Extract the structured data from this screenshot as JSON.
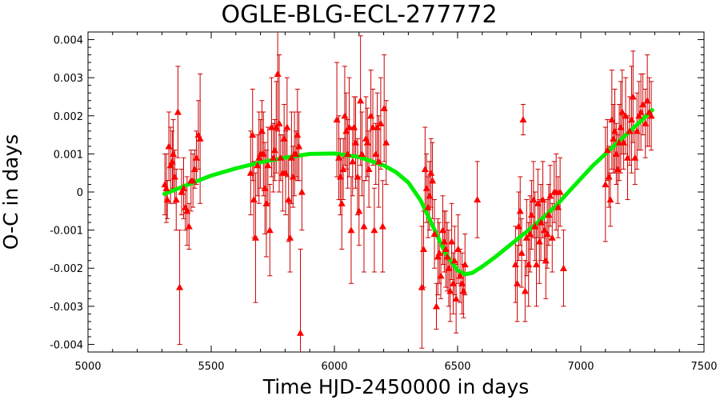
{
  "chart_data": {
    "type": "scatter",
    "title": "OGLE-BLG-ECL-277772",
    "xlabel": "Time HJD-2450000 in days",
    "ylabel": "O-C in days",
    "xlim": [
      5000,
      7500
    ],
    "ylim": [
      -0.0042,
      0.0042
    ],
    "x_ticks": [
      "5000",
      "5500",
      "6000",
      "6500",
      "7000",
      "7500"
    ],
    "y_ticks": [
      "-0.004",
      "-0.003",
      "-0.002",
      "-0.001",
      "0",
      "0.001",
      "0.002",
      "0.003",
      "0.004"
    ],
    "grid": false,
    "colors": {
      "points": "#ff0000",
      "errorbars": "#cc0000",
      "fit": "#00ee00"
    },
    "series": [
      {
        "type": "scatter_errorbars",
        "points": [
          {
            "x": 5312,
            "y": 0.0002,
            "err": 0.0008
          },
          {
            "x": 5318,
            "y": 0.0001,
            "err": 0.0009
          },
          {
            "x": 5322,
            "y": -0.0002,
            "err": 0.0005
          },
          {
            "x": 5328,
            "y": 0.0012,
            "err": 0.0009
          },
          {
            "x": 5335,
            "y": 0.0007,
            "err": 0.001
          },
          {
            "x": 5342,
            "y": 0.0008,
            "err": 0.0008
          },
          {
            "x": 5346,
            "y": 0.001,
            "err": 0.0009
          },
          {
            "x": 5352,
            "y": 0.0004,
            "err": 0.0007
          },
          {
            "x": 5358,
            "y": -0.0002,
            "err": 0.0008
          },
          {
            "x": 5365,
            "y": 0.0021,
            "err": 0.0012
          },
          {
            "x": 5372,
            "y": -0.0025,
            "err": 0.0015
          },
          {
            "x": 5380,
            "y": 0.0,
            "err": 0.0006
          },
          {
            "x": 5388,
            "y": 0.0001,
            "err": 0.0008
          },
          {
            "x": 5395,
            "y": -0.0004,
            "err": 0.0006
          },
          {
            "x": 5402,
            "y": -0.0005,
            "err": 0.0009
          },
          {
            "x": 5410,
            "y": -0.0009,
            "err": 0.0006
          },
          {
            "x": 5418,
            "y": 0.0003,
            "err": 0.0008
          },
          {
            "x": 5426,
            "y": 0.0003,
            "err": 0.0007
          },
          {
            "x": 5433,
            "y": 0.0006,
            "err": 0.0005
          },
          {
            "x": 5440,
            "y": 0.0009,
            "err": 0.0007
          },
          {
            "x": 5448,
            "y": 0.0015,
            "err": 0.0009
          },
          {
            "x": 5455,
            "y": 0.0014,
            "err": 0.0017
          },
          {
            "x": 5660,
            "y": 0.0005,
            "err": 0.0011
          },
          {
            "x": 5668,
            "y": 0.0015,
            "err": 0.0012
          },
          {
            "x": 5673,
            "y": -0.0002,
            "err": 0.001
          },
          {
            "x": 5680,
            "y": -0.0012,
            "err": 0.0017
          },
          {
            "x": 5688,
            "y": 0.0007,
            "err": 0.0008
          },
          {
            "x": 5694,
            "y": 0.0009,
            "err": 0.0012
          },
          {
            "x": 5700,
            "y": 0.001,
            "err": 0.0009
          },
          {
            "x": 5706,
            "y": 0.0016,
            "err": 0.0008
          },
          {
            "x": 5712,
            "y": 0.001,
            "err": 0.0011
          },
          {
            "x": 5718,
            "y": 0.0001,
            "err": 0.0012
          },
          {
            "x": 5724,
            "y": -0.0003,
            "err": 0.0014
          },
          {
            "x": 5730,
            "y": 0.0007,
            "err": 0.001
          },
          {
            "x": 5738,
            "y": -0.001,
            "err": 0.0012
          },
          {
            "x": 5745,
            "y": 0.0017,
            "err": 0.0013
          },
          {
            "x": 5752,
            "y": 0.0009,
            "err": 0.0009
          },
          {
            "x": 5758,
            "y": 0.0011,
            "err": 0.0008
          },
          {
            "x": 5764,
            "y": 0.0017,
            "err": 0.0012
          },
          {
            "x": 5770,
            "y": 0.0031,
            "err": 0.0015
          },
          {
            "x": 5776,
            "y": 0.0018,
            "err": 0.0018
          },
          {
            "x": 5782,
            "y": 0.0009,
            "err": 0.0006
          },
          {
            "x": 5790,
            "y": 0.0005,
            "err": 0.001
          },
          {
            "x": 5796,
            "y": 0.0014,
            "err": 0.0009
          },
          {
            "x": 5802,
            "y": 0.0005,
            "err": 0.0011
          },
          {
            "x": 5808,
            "y": 0.0017,
            "err": 0.0013
          },
          {
            "x": 5814,
            "y": -0.0002,
            "err": 0.0011
          },
          {
            "x": 5820,
            "y": -0.0012,
            "err": 0.0009
          },
          {
            "x": 5826,
            "y": 0.0009,
            "err": 0.0012
          },
          {
            "x": 5832,
            "y": 0.0004,
            "err": 0.0008
          },
          {
            "x": 5838,
            "y": 0.001,
            "err": 0.0011
          },
          {
            "x": 5844,
            "y": 0.001,
            "err": 0.0006
          },
          {
            "x": 5850,
            "y": 0.0015,
            "err": 0.0012
          },
          {
            "x": 5856,
            "y": 0.0012,
            "err": 0.0009
          },
          {
            "x": 5862,
            "y": -0.0037,
            "err": 0.0022
          },
          {
            "x": 5868,
            "y": 0.0,
            "err": 0.001
          },
          {
            "x": 6010,
            "y": 0.0019,
            "err": 0.0015
          },
          {
            "x": 6018,
            "y": 0.0009,
            "err": 0.0011
          },
          {
            "x": 6024,
            "y": 0.0004,
            "err": 0.001
          },
          {
            "x": 6030,
            "y": -0.0003,
            "err": 0.0012
          },
          {
            "x": 6036,
            "y": 0.0006,
            "err": 0.0008
          },
          {
            "x": 6042,
            "y": 0.002,
            "err": 0.0013
          },
          {
            "x": 6048,
            "y": 0.0016,
            "err": 0.001
          },
          {
            "x": 6054,
            "y": 0.001,
            "err": 0.0009
          },
          {
            "x": 6060,
            "y": 0.0017,
            "err": 0.0013
          },
          {
            "x": 6068,
            "y": -0.001,
            "err": 0.0014
          },
          {
            "x": 6074,
            "y": 0.0008,
            "err": 0.0009
          },
          {
            "x": 6080,
            "y": 0.0017,
            "err": 0.0008
          },
          {
            "x": 6086,
            "y": 0.0013,
            "err": 0.0012
          },
          {
            "x": 6094,
            "y": 0.0004,
            "err": 0.001
          },
          {
            "x": 6100,
            "y": -0.0005,
            "err": 0.0009
          },
          {
            "x": 6106,
            "y": 0.0024,
            "err": 0.0017
          },
          {
            "x": 6112,
            "y": 0.001,
            "err": 0.0011
          },
          {
            "x": 6120,
            "y": -0.0009,
            "err": 0.0012
          },
          {
            "x": 6128,
            "y": 0.0014,
            "err": 0.0011
          },
          {
            "x": 6134,
            "y": 0.0013,
            "err": 0.0009
          },
          {
            "x": 6140,
            "y": 0.0006,
            "err": 0.001
          },
          {
            "x": 6148,
            "y": 0.002,
            "err": 0.0012
          },
          {
            "x": 6156,
            "y": 0.0017,
            "err": 0.001
          },
          {
            "x": 6162,
            "y": -0.001,
            "err": 0.0011
          },
          {
            "x": 6168,
            "y": 0.001,
            "err": 0.0008
          },
          {
            "x": 6174,
            "y": 0.0017,
            "err": 0.0009
          },
          {
            "x": 6180,
            "y": 0.0008,
            "err": 0.0012
          },
          {
            "x": 6188,
            "y": 0.0018,
            "err": 0.0012
          },
          {
            "x": 6196,
            "y": -0.0009,
            "err": 0.0012
          },
          {
            "x": 6202,
            "y": 0.0022,
            "err": 0.0014
          },
          {
            "x": 6210,
            "y": 0.0013,
            "err": 0.0011
          },
          {
            "x": 6355,
            "y": -0.0025,
            "err": 0.0016
          },
          {
            "x": 6362,
            "y": -0.0015,
            "err": 0.001
          },
          {
            "x": 6368,
            "y": 0.0006,
            "err": 0.0011
          },
          {
            "x": 6374,
            "y": 0.0001,
            "err": 0.0009
          },
          {
            "x": 6380,
            "y": -0.0004,
            "err": 0.0008
          },
          {
            "x": 6386,
            "y": -0.0001,
            "err": 0.0009
          },
          {
            "x": 6392,
            "y": 0.0005,
            "err": 0.0009
          },
          {
            "x": 6398,
            "y": 0.0003,
            "err": 0.001
          },
          {
            "x": 6406,
            "y": -0.0011,
            "err": 0.0009
          },
          {
            "x": 6414,
            "y": -0.003,
            "err": 0.0006
          },
          {
            "x": 6420,
            "y": -0.0017,
            "err": 0.001
          },
          {
            "x": 6426,
            "y": -0.0016,
            "err": 0.0008
          },
          {
            "x": 6432,
            "y": -0.0022,
            "err": 0.0006
          },
          {
            "x": 6440,
            "y": -0.001,
            "err": 0.0009
          },
          {
            "x": 6446,
            "y": -0.0013,
            "err": 0.0008
          },
          {
            "x": 6452,
            "y": -0.0015,
            "err": 0.001
          },
          {
            "x": 6458,
            "y": -0.0017,
            "err": 0.0009
          },
          {
            "x": 6464,
            "y": -0.002,
            "err": 0.001
          },
          {
            "x": 6470,
            "y": -0.0026,
            "err": 0.0008
          },
          {
            "x": 6476,
            "y": -0.0013,
            "err": 0.001
          },
          {
            "x": 6482,
            "y": -0.0024,
            "err": 0.0008
          },
          {
            "x": 6488,
            "y": -0.0018,
            "err": 0.0009
          },
          {
            "x": 6494,
            "y": -0.0028,
            "err": 0.0009
          },
          {
            "x": 6502,
            "y": -0.0015,
            "err": 0.0009
          },
          {
            "x": 6510,
            "y": -0.0022,
            "err": 0.0007
          },
          {
            "x": 6518,
            "y": -0.0024,
            "err": 0.0008
          },
          {
            "x": 6524,
            "y": -0.0026,
            "err": 0.0007
          },
          {
            "x": 6530,
            "y": -0.0019,
            "err": 0.0008
          },
          {
            "x": 6580,
            "y": -0.0002,
            "err": 0.001
          },
          {
            "x": 6735,
            "y": -0.0019,
            "err": 0.001
          },
          {
            "x": 6742,
            "y": -0.0024,
            "err": 0.001
          },
          {
            "x": 6748,
            "y": -0.0009,
            "err": 0.0009
          },
          {
            "x": 6754,
            "y": -0.0005,
            "err": 0.0009
          },
          {
            "x": 6760,
            "y": -0.0016,
            "err": 0.0009
          },
          {
            "x": 6766,
            "y": 0.0019,
            "err": 0.0004
          },
          {
            "x": 6774,
            "y": -0.0026,
            "err": 0.0008
          },
          {
            "x": 6780,
            "y": -0.0012,
            "err": 0.001
          },
          {
            "x": 6788,
            "y": -0.0019,
            "err": 0.0011
          },
          {
            "x": 6794,
            "y": -0.0011,
            "err": 0.001
          },
          {
            "x": 6800,
            "y": -0.0006,
            "err": 0.0009
          },
          {
            "x": 6808,
            "y": -0.0002,
            "err": 0.001
          },
          {
            "x": 6814,
            "y": -0.0009,
            "err": 0.0009
          },
          {
            "x": 6820,
            "y": -0.0019,
            "err": 0.0011
          },
          {
            "x": 6826,
            "y": -0.0003,
            "err": 0.0009
          },
          {
            "x": 6832,
            "y": -0.0013,
            "err": 0.0011
          },
          {
            "x": 6838,
            "y": -0.0008,
            "err": 0.001
          },
          {
            "x": 6846,
            "y": -0.0002,
            "err": 0.001
          },
          {
            "x": 6852,
            "y": -0.001,
            "err": 0.0008
          },
          {
            "x": 6858,
            "y": -0.0018,
            "err": 0.001
          },
          {
            "x": 6864,
            "y": -0.0011,
            "err": 0.0009
          },
          {
            "x": 6870,
            "y": -0.0006,
            "err": 0.0008
          },
          {
            "x": 6876,
            "y": -0.0001,
            "err": 0.0008
          },
          {
            "x": 6884,
            "y": -0.0012,
            "err": 0.0009
          },
          {
            "x": 6892,
            "y": 0.0,
            "err": 0.0008
          },
          {
            "x": 6900,
            "y": 0.0,
            "err": 0.001
          },
          {
            "x": 6908,
            "y": -0.0004,
            "err": 0.0008
          },
          {
            "x": 6916,
            "y": 0.0,
            "err": 0.0009
          },
          {
            "x": 6930,
            "y": -0.002,
            "err": 0.001
          },
          {
            "x": 7100,
            "y": 0.0002,
            "err": 0.0015
          },
          {
            "x": 7108,
            "y": 0.0011,
            "err": 0.0008
          },
          {
            "x": 7114,
            "y": 0.0004,
            "err": 0.0008
          },
          {
            "x": 7120,
            "y": -0.0002,
            "err": 0.0007
          },
          {
            "x": 7126,
            "y": 0.0019,
            "err": 0.0013
          },
          {
            "x": 7132,
            "y": 0.0014,
            "err": 0.0009
          },
          {
            "x": 7138,
            "y": 0.0016,
            "err": 0.0011
          },
          {
            "x": 7144,
            "y": 0.001,
            "err": 0.0008
          },
          {
            "x": 7150,
            "y": 0.0006,
            "err": 0.0009
          },
          {
            "x": 7156,
            "y": 0.0013,
            "err": 0.001
          },
          {
            "x": 7162,
            "y": 0.0017,
            "err": 0.0012
          },
          {
            "x": 7168,
            "y": 0.0021,
            "err": 0.0011
          },
          {
            "x": 7174,
            "y": 0.0013,
            "err": 0.0007
          },
          {
            "x": 7182,
            "y": 0.002,
            "err": 0.001
          },
          {
            "x": 7190,
            "y": 0.0009,
            "err": 0.0011
          },
          {
            "x": 7198,
            "y": 0.0016,
            "err": 0.0009
          },
          {
            "x": 7206,
            "y": 0.0019,
            "err": 0.0014
          },
          {
            "x": 7212,
            "y": 0.0025,
            "err": 0.0012
          },
          {
            "x": 7220,
            "y": 0.0009,
            "err": 0.0007
          },
          {
            "x": 7228,
            "y": 0.0016,
            "err": 0.001
          },
          {
            "x": 7236,
            "y": 0.002,
            "err": 0.0009
          },
          {
            "x": 7244,
            "y": 0.0021,
            "err": 0.001
          },
          {
            "x": 7252,
            "y": 0.0023,
            "err": 0.0008
          },
          {
            "x": 7262,
            "y": 0.0018,
            "err": 0.0009
          },
          {
            "x": 7270,
            "y": 0.0024,
            "err": 0.0012
          },
          {
            "x": 7278,
            "y": 0.0021,
            "err": 0.0009
          },
          {
            "x": 7286,
            "y": 0.002,
            "err": 0.0009
          }
        ]
      },
      {
        "type": "fit_line",
        "x": [
          5310,
          5400,
          5500,
          5600,
          5700,
          5800,
          5900,
          6000,
          6100,
          6200,
          6250,
          6300,
          6350,
          6400,
          6450,
          6500,
          6530,
          6560,
          6600,
          6650,
          6700,
          6750,
          6800,
          6850,
          6900,
          6950,
          7000,
          7050,
          7100,
          7150,
          7200,
          7250,
          7290
        ],
        "y": [
          -5e-05,
          0.00018,
          0.00043,
          0.00062,
          0.00078,
          0.0009,
          0.001,
          0.00101,
          0.00092,
          0.0007,
          0.00052,
          0.00025,
          -0.00022,
          -0.0009,
          -0.0016,
          -0.00206,
          -0.00216,
          -0.00212,
          -0.00196,
          -0.00172,
          -0.00146,
          -0.0012,
          -0.00094,
          -0.00066,
          -0.00036,
          0.0,
          0.00035,
          0.0007,
          0.001,
          0.0013,
          0.0016,
          0.0019,
          0.00215
        ]
      }
    ]
  }
}
